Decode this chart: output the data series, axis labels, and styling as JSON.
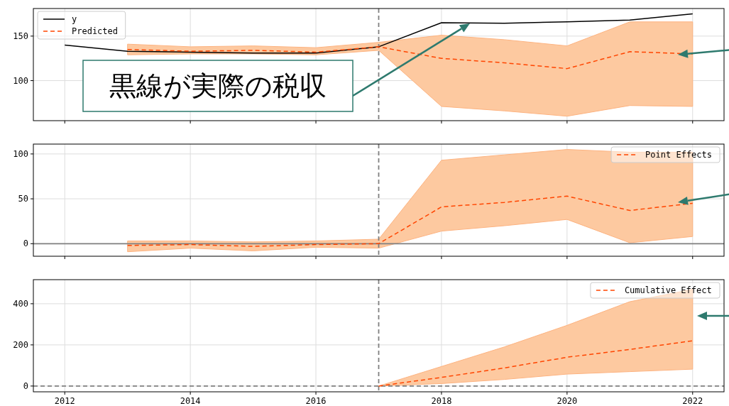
{
  "chart_data": [
    {
      "type": "line",
      "x": [
        2012,
        2013,
        2014,
        2015,
        2016,
        2017,
        2018,
        2019,
        2020,
        2021,
        2022
      ],
      "xlim": [
        2011.5,
        2022.5
      ],
      "xticks": [
        2012,
        2014,
        2016,
        2018,
        2020,
        2022
      ],
      "ylim": [
        55,
        181
      ],
      "yticks": [
        100,
        150
      ],
      "grid": true,
      "legend": "top left",
      "tick_labels": "y",
      "series": [
        {
          "name": "y",
          "color": "#000000",
          "line_style": "solid",
          "values": [
            140,
            133,
            132,
            131,
            131,
            138,
            165,
            164.5,
            166,
            168,
            175
          ]
        },
        {
          "name": "Predicted",
          "color": "#ff4500",
          "line_style": "dashed",
          "x": [
            2013,
            2014,
            2015,
            2016,
            2017,
            2018,
            2019,
            2020,
            2021,
            2022
          ],
          "values": [
            135,
            133,
            134,
            132,
            138,
            125,
            120,
            113.5,
            132.5,
            130
          ],
          "lower": [
            129,
            130,
            130,
            129,
            134,
            71,
            66,
            60,
            72,
            71
          ],
          "upper": [
            141,
            138,
            139,
            137,
            143,
            151,
            146,
            139,
            166,
            166
          ]
        }
      ],
      "ref_lines": [
        {
          "axis": "x",
          "value": 2017,
          "color": "#808080",
          "line_style": "dashed"
        }
      ],
      "annotations": [
        "黒線が実際の税収"
      ]
    },
    {
      "type": "line",
      "x": [
        2013,
        2014,
        2015,
        2016,
        2017,
        2018,
        2019,
        2020,
        2021,
        2022
      ],
      "xlim": [
        2011.5,
        2022.5
      ],
      "xticks": [
        2012,
        2014,
        2016,
        2018,
        2020,
        2022
      ],
      "ylim": [
        -14,
        111
      ],
      "yticks": [
        0,
        50,
        100
      ],
      "grid": true,
      "legend": "top right",
      "tick_labels": "y",
      "series": [
        {
          "name": "Point Effects",
          "color": "#ff4500",
          "line_style": "dashed",
          "values": [
            -2,
            -1,
            -3,
            -1,
            0,
            41,
            46,
            53,
            37,
            45
          ],
          "lower": [
            -9,
            -5,
            -8,
            -4,
            -5,
            14,
            20,
            27,
            1,
            8
          ],
          "upper": [
            3,
            3,
            2,
            3,
            5,
            93,
            99,
            105,
            102,
            102
          ]
        }
      ],
      "ref_lines": [
        {
          "axis": "x",
          "value": 2017,
          "color": "#808080",
          "line_style": "dashed"
        },
        {
          "axis": "y",
          "value": 0,
          "color": "#808080",
          "line_style": "solid"
        }
      ]
    },
    {
      "type": "line",
      "x": [
        2017,
        2018,
        2019,
        2020,
        2021,
        2022
      ],
      "xlim": [
        2011.5,
        2022.5
      ],
      "xticks": [
        2012,
        2014,
        2016,
        2018,
        2020,
        2022
      ],
      "ylim": [
        -28,
        517
      ],
      "yticks": [
        0,
        200,
        400
      ],
      "grid": true,
      "legend": "top right",
      "series": [
        {
          "name": "Cumulative Effect",
          "color": "#ff4500",
          "line_style": "dashed",
          "values": [
            0,
            42,
            88,
            140,
            178,
            220
          ],
          "lower": [
            0,
            12,
            32,
            58,
            70,
            82
          ],
          "upper": [
            0,
            95,
            190,
            295,
            410,
            470
          ]
        }
      ],
      "ref_lines": [
        {
          "axis": "x",
          "value": 2017,
          "color": "#808080",
          "line_style": "dashed"
        },
        {
          "axis": "y",
          "value": 0,
          "color": "#808080",
          "line_style": "dashed"
        }
      ]
    }
  ]
}
